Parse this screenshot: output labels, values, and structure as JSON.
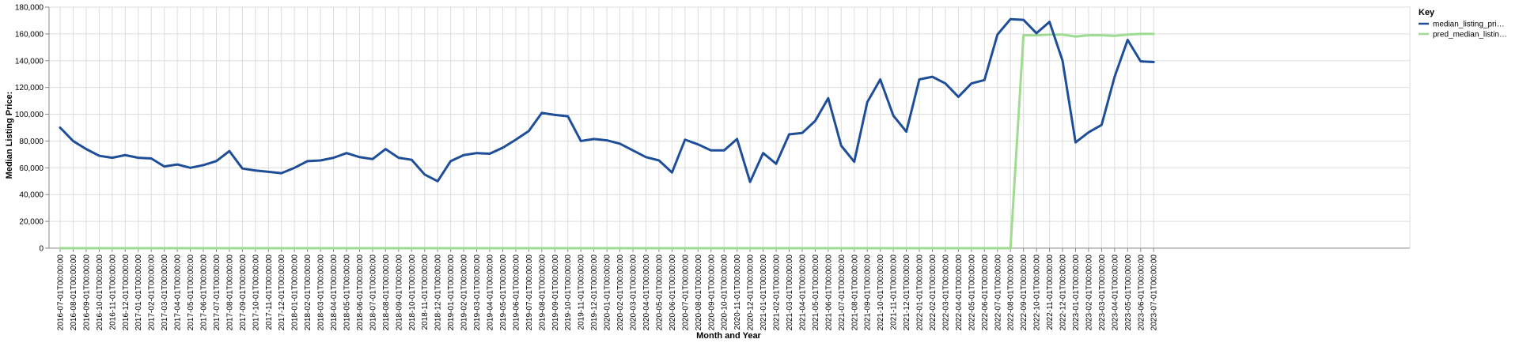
{
  "chart_data": {
    "type": "line",
    "xlabel": "Month and Year",
    "ylabel": "Median Listing Price:",
    "ylim": [
      0,
      180000
    ],
    "yticks": [
      "0",
      "20,000",
      "40,000",
      "60,000",
      "80,000",
      "100,000",
      "120,000",
      "140,000",
      "160,000",
      "180,000"
    ],
    "grid": true,
    "legend": {
      "title": "Key",
      "position": "top-right",
      "entries": [
        "median_listing_pri…",
        "pred_median_listin…"
      ]
    },
    "categories": [
      "2016-07-01T00:00:00",
      "2016-08-01T00:00:00",
      "2016-09-01T00:00:00",
      "2016-10-01T00:00:00",
      "2016-11-01T00:00:00",
      "2016-12-01T00:00:00",
      "2017-01-01T00:00:00",
      "2017-02-01T00:00:00",
      "2017-03-01T00:00:00",
      "2017-04-01T00:00:00",
      "2017-05-01T00:00:00",
      "2017-06-01T00:00:00",
      "2017-07-01T00:00:00",
      "2017-08-01T00:00:00",
      "2017-09-01T00:00:00",
      "2017-10-01T00:00:00",
      "2017-11-01T00:00:00",
      "2017-12-01T00:00:00",
      "2018-01-01T00:00:00",
      "2018-02-01T00:00:00",
      "2018-03-01T00:00:00",
      "2018-04-01T00:00:00",
      "2018-05-01T00:00:00",
      "2018-06-01T00:00:00",
      "2018-07-01T00:00:00",
      "2018-08-01T00:00:00",
      "2018-09-01T00:00:00",
      "2018-10-01T00:00:00",
      "2018-11-01T00:00:00",
      "2018-12-01T00:00:00",
      "2019-01-01T00:00:00",
      "2019-02-01T00:00:00",
      "2019-03-01T00:00:00",
      "2019-04-01T00:00:00",
      "2019-05-01T00:00:00",
      "2019-06-01T00:00:00",
      "2019-07-01T00:00:00",
      "2019-08-01T00:00:00",
      "2019-09-01T00:00:00",
      "2019-10-01T00:00:00",
      "2019-11-01T00:00:00",
      "2019-12-01T00:00:00",
      "2020-01-01T00:00:00",
      "2020-02-01T00:00:00",
      "2020-03-01T00:00:00",
      "2020-04-01T00:00:00",
      "2020-05-01T00:00:00",
      "2020-06-01T00:00:00",
      "2020-07-01T00:00:00",
      "2020-08-01T00:00:00",
      "2020-09-01T00:00:00",
      "2020-10-01T00:00:00",
      "2020-11-01T00:00:00",
      "2020-12-01T00:00:00",
      "2021-01-01T00:00:00",
      "2021-02-01T00:00:00",
      "2021-03-01T00:00:00",
      "2021-04-01T00:00:00",
      "2021-05-01T00:00:00",
      "2021-06-01T00:00:00",
      "2021-07-01T00:00:00",
      "2021-08-01T00:00:00",
      "2021-09-01T00:00:00",
      "2021-10-01T00:00:00",
      "2021-11-01T00:00:00",
      "2021-12-01T00:00:00",
      "2022-01-01T00:00:00",
      "2022-02-01T00:00:00",
      "2022-03-01T00:00:00",
      "2022-04-01T00:00:00",
      "2022-05-01T00:00:00",
      "2022-06-01T00:00:00",
      "2022-07-01T00:00:00",
      "2022-08-01T00:00:00",
      "2022-09-01T00:00:00",
      "2022-10-01T00:00:00",
      "2022-11-01T00:00:00",
      "2022-12-01T00:00:00",
      "2023-01-01T00:00:00",
      "2023-02-01T00:00:00",
      "2023-03-01T00:00:00",
      "2023-04-01T00:00:00",
      "2023-05-01T00:00:00",
      "2023-06-01T00:00:00",
      "2023-07-01T00:00:00"
    ],
    "series": [
      {
        "name": "median_listing_pri…",
        "color": "#1f4e99",
        "values": [
          90000,
          80000,
          74000,
          69000,
          67500,
          69500,
          67500,
          67000,
          61000,
          62500,
          60000,
          62000,
          65000,
          72500,
          59500,
          58000,
          57000,
          56000,
          60000,
          65000,
          65500,
          67500,
          71000,
          68000,
          66500,
          74000,
          67500,
          66000,
          55000,
          50000,
          65000,
          69500,
          71000,
          70500,
          75000,
          81000,
          87500,
          101000,
          99500,
          98500,
          80000,
          81500,
          80500,
          78000,
          73000,
          68000,
          65500,
          56500,
          81000,
          77500,
          73000,
          73000,
          81500,
          49500,
          71000,
          63000,
          85000,
          86000,
          95000,
          112000,
          76500,
          64500,
          109000,
          126000,
          99000,
          87000,
          126000,
          128000,
          123000,
          113000,
          123000,
          125500,
          159500,
          171000,
          170500,
          160500,
          169000,
          140000,
          79000,
          86500,
          92000,
          128000,
          155500,
          139500,
          139000
        ]
      },
      {
        "name": "pred_median_listin…",
        "color": "#9fdc92",
        "values": [
          0,
          0,
          0,
          0,
          0,
          0,
          0,
          0,
          0,
          0,
          0,
          0,
          0,
          0,
          0,
          0,
          0,
          0,
          0,
          0,
          0,
          0,
          0,
          0,
          0,
          0,
          0,
          0,
          0,
          0,
          0,
          0,
          0,
          0,
          0,
          0,
          0,
          0,
          0,
          0,
          0,
          0,
          0,
          0,
          0,
          0,
          0,
          0,
          0,
          0,
          0,
          0,
          0,
          0,
          0,
          0,
          0,
          0,
          0,
          0,
          0,
          0,
          0,
          0,
          0,
          0,
          0,
          0,
          0,
          0,
          0,
          0,
          0,
          0,
          159000,
          159000,
          159500,
          159500,
          158000,
          159000,
          159000,
          158500,
          159500,
          160000,
          160000
        ]
      }
    ]
  }
}
